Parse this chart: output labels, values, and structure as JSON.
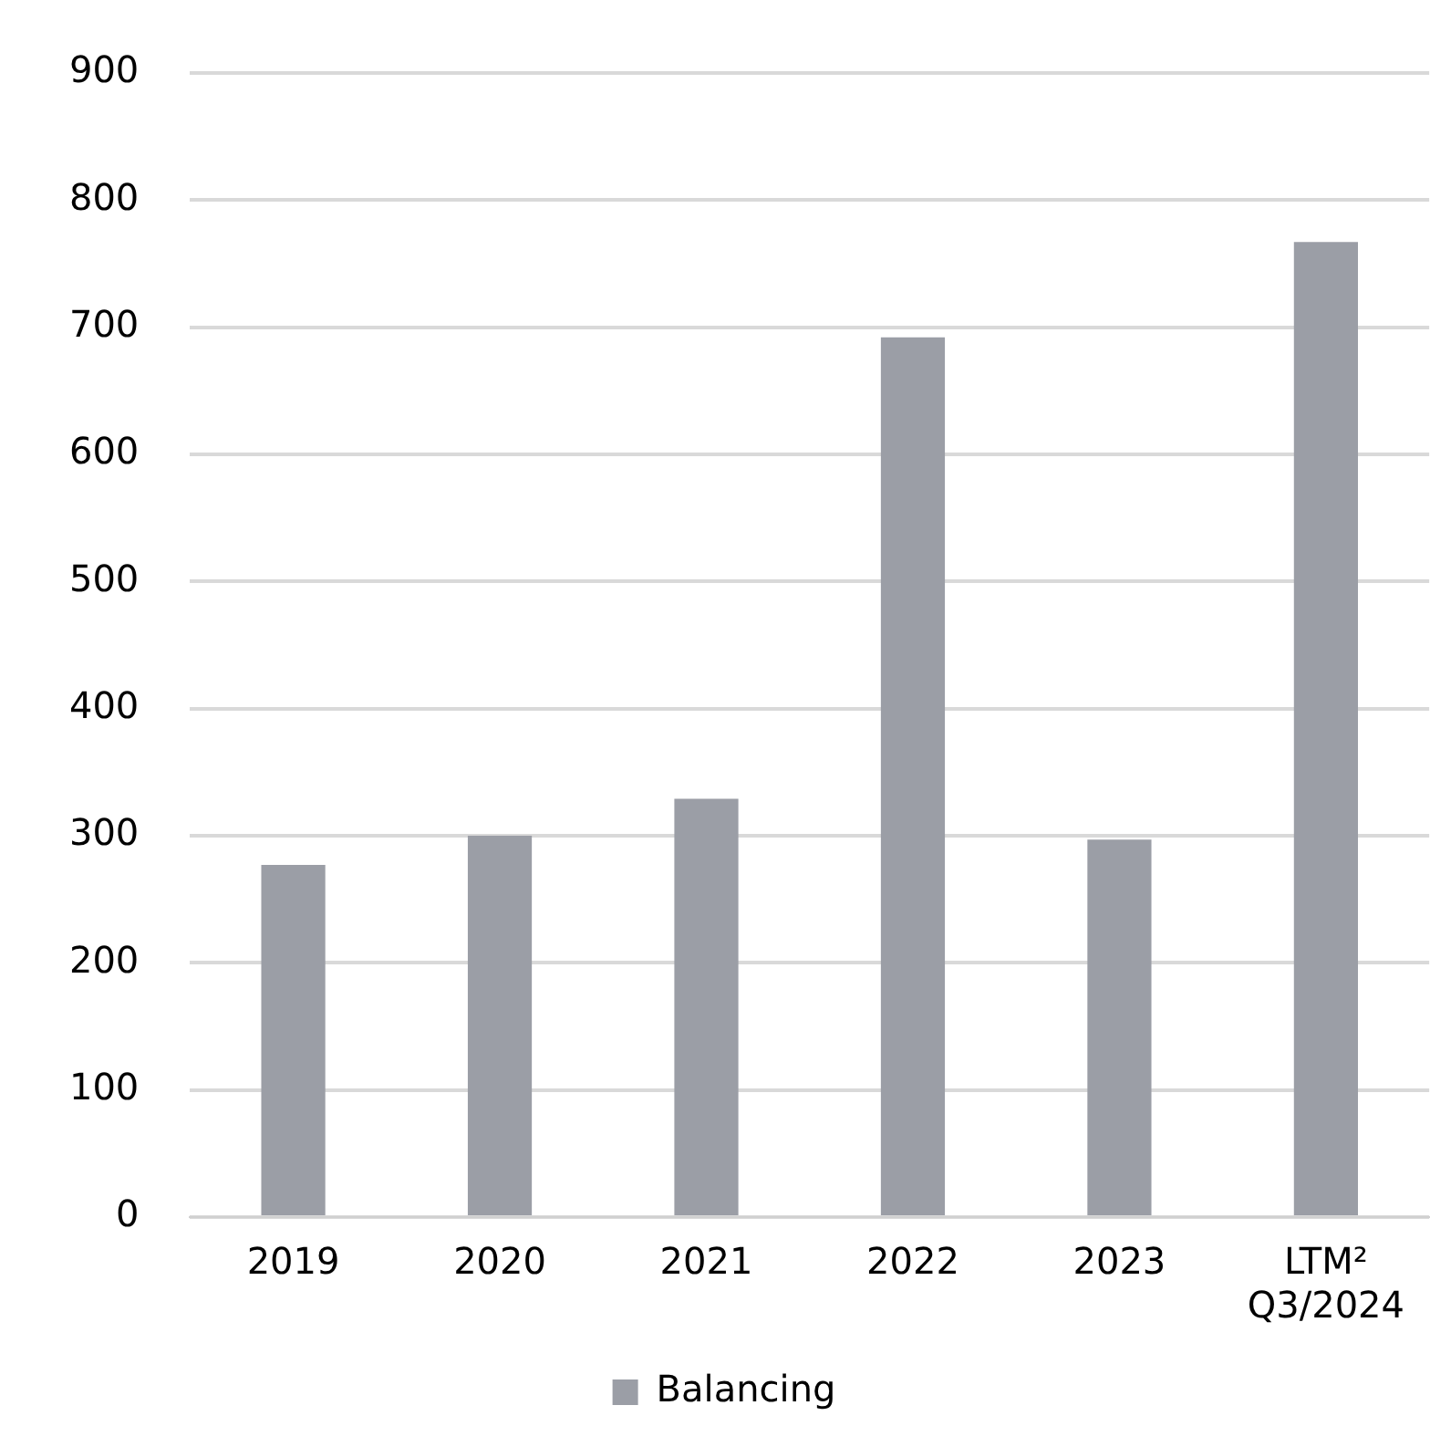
{
  "chart_data": {
    "type": "bar",
    "categories": [
      "2019",
      "2020",
      "2021",
      "2022",
      "2023",
      "LTM²\nQ3/2024"
    ],
    "series": [
      {
        "name": "Balancing",
        "color": "#9b9ea6",
        "values": [
          277,
          300,
          329,
          692,
          297,
          767
        ]
      }
    ],
    "ylim": [
      0,
      900
    ],
    "yticks": [
      0,
      100,
      200,
      300,
      400,
      500,
      600,
      700,
      800,
      900
    ],
    "grid": "y",
    "legend": "bottom"
  }
}
